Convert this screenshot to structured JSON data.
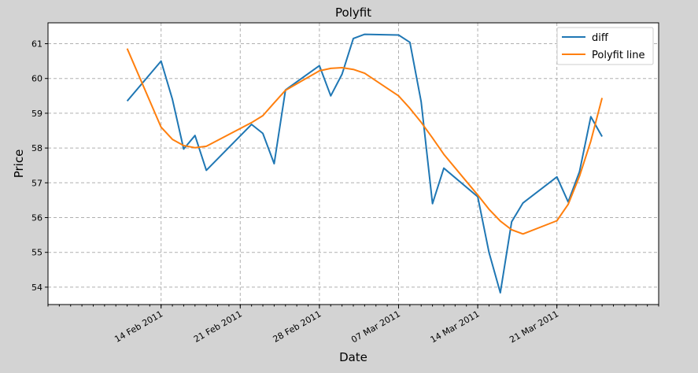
{
  "chart_data": {
    "type": "line",
    "title": "Polyfit",
    "xlabel": "Date",
    "ylabel": "Price",
    "xlim": [
      "2011-02-04",
      "2011-03-30"
    ],
    "ylim": [
      53.5,
      61.6
    ],
    "grid": true,
    "legend_position": "top-right",
    "x_tick_labels": [
      {
        "date": "2011-02-14",
        "label": "14 Feb 2011"
      },
      {
        "date": "2011-02-21",
        "label": "21 Feb 2011"
      },
      {
        "date": "2011-02-28",
        "label": "28 Feb 2011"
      },
      {
        "date": "2011-03-07",
        "label": "07 Mar 2011"
      },
      {
        "date": "2011-03-14",
        "label": "14 Mar 2011"
      },
      {
        "date": "2011-03-21",
        "label": "21 Mar 2011"
      }
    ],
    "y_ticks": [
      54,
      55,
      56,
      57,
      58,
      59,
      60,
      61
    ],
    "series": [
      {
        "name": "diff",
        "color": "#1f77b4",
        "points": [
          [
            "2011-02-11",
            59.35
          ],
          [
            "2011-02-14",
            60.5
          ],
          [
            "2011-02-15",
            59.4
          ],
          [
            "2011-02-16",
            57.97
          ],
          [
            "2011-02-17",
            58.36
          ],
          [
            "2011-02-18",
            57.36
          ],
          [
            "2011-02-22",
            58.68
          ],
          [
            "2011-02-23",
            58.42
          ],
          [
            "2011-02-24",
            57.55
          ],
          [
            "2011-02-25",
            59.67
          ],
          [
            "2011-02-28",
            60.37
          ],
          [
            "2011-03-01",
            59.5
          ],
          [
            "2011-03-02",
            60.12
          ],
          [
            "2011-03-03",
            61.15
          ],
          [
            "2011-03-04",
            61.27
          ],
          [
            "2011-03-07",
            61.25
          ],
          [
            "2011-03-08",
            61.04
          ],
          [
            "2011-03-09",
            59.33
          ],
          [
            "2011-03-10",
            56.4
          ],
          [
            "2011-03-11",
            57.42
          ],
          [
            "2011-03-14",
            56.6
          ],
          [
            "2011-03-15",
            55.0
          ],
          [
            "2011-03-16",
            53.84
          ],
          [
            "2011-03-17",
            55.88
          ],
          [
            "2011-03-18",
            56.42
          ],
          [
            "2011-03-21",
            57.17
          ],
          [
            "2011-03-22",
            56.45
          ],
          [
            "2011-03-23",
            57.32
          ],
          [
            "2011-03-24",
            58.9
          ],
          [
            "2011-03-25",
            58.33
          ]
        ]
      },
      {
        "name": "Polyfit line",
        "color": "#ff7f0e",
        "points": [
          [
            "2011-02-11",
            60.86
          ],
          [
            "2011-02-14",
            58.6
          ],
          [
            "2011-02-15",
            58.25
          ],
          [
            "2011-02-16",
            58.07
          ],
          [
            "2011-02-17",
            58.01
          ],
          [
            "2011-02-18",
            58.05
          ],
          [
            "2011-02-22",
            58.73
          ],
          [
            "2011-02-23",
            58.93
          ],
          [
            "2011-02-24",
            59.3
          ],
          [
            "2011-02-25",
            59.66
          ],
          [
            "2011-02-28",
            60.22
          ],
          [
            "2011-03-01",
            60.29
          ],
          [
            "2011-03-02",
            60.31
          ],
          [
            "2011-03-03",
            60.26
          ],
          [
            "2011-03-04",
            60.15
          ],
          [
            "2011-03-07",
            59.5
          ],
          [
            "2011-03-08",
            59.14
          ],
          [
            "2011-03-09",
            58.74
          ],
          [
            "2011-03-10",
            58.29
          ],
          [
            "2011-03-11",
            57.82
          ],
          [
            "2011-03-14",
            56.65
          ],
          [
            "2011-03-15",
            56.24
          ],
          [
            "2011-03-16",
            55.9
          ],
          [
            "2011-03-17",
            55.65
          ],
          [
            "2011-03-18",
            55.53
          ],
          [
            "2011-03-21",
            55.91
          ],
          [
            "2011-03-22",
            56.38
          ],
          [
            "2011-03-23",
            57.19
          ],
          [
            "2011-03-24",
            58.2
          ],
          [
            "2011-03-25",
            59.44
          ]
        ]
      }
    ]
  }
}
